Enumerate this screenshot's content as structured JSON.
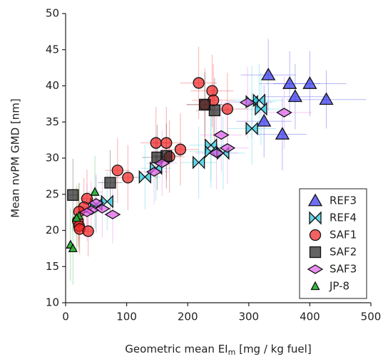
{
  "chart_data": {
    "type": "scatter",
    "xlabel": [
      "Geometric mean EI",
      "m",
      " [mg / kg fuel]"
    ],
    "ylabel": "Mean nvPM GMD [nm]",
    "xlim": [
      0,
      500
    ],
    "ylim": [
      10,
      50
    ],
    "xticks": [
      0,
      100,
      200,
      300,
      400,
      500
    ],
    "yticks": [
      10,
      15,
      20,
      25,
      30,
      35,
      40,
      45,
      50
    ],
    "legend": "lower right",
    "series": [
      {
        "name": "REF3",
        "color": "#3030ee",
        "marker": "triangle",
        "x": [
          332,
          367,
          400,
          376,
          427,
          325,
          355
        ],
        "values": [
          41.5,
          40.3,
          40.3,
          38.5,
          38.1,
          35.1,
          33.3
        ],
        "xerr": [
          45,
          50,
          60,
          55,
          65,
          45,
          40
        ],
        "yerr": [
          5,
          4.5,
          4.5,
          4.5,
          4,
          5,
          5
        ]
      },
      {
        "name": "REF4",
        "color": "#22c8e0",
        "marker": "bowtie",
        "x": [
          305,
          317,
          320,
          305,
          238,
          258,
          238,
          218,
          130,
          148,
          68,
          50
        ],
        "values": [
          37.8,
          38,
          36.8,
          34.1,
          31.8,
          30.7,
          30.9,
          29.4,
          27.4,
          28.6,
          24,
          23.6
        ],
        "xerr": [
          40,
          40,
          40,
          40,
          35,
          35,
          35,
          30,
          25,
          25,
          15,
          12
        ],
        "yerr": [
          5,
          5,
          5,
          5,
          5,
          5,
          5,
          5,
          4.5,
          4.5,
          4,
          4
        ]
      },
      {
        "name": "SAF1",
        "color": "#ee2020",
        "marker": "circle",
        "x": [
          218,
          240,
          242,
          228,
          265,
          148,
          165,
          188,
          170,
          85,
          102,
          35,
          30,
          22,
          20,
          22,
          23,
          37
        ],
        "values": [
          40.4,
          39.3,
          38,
          37.4,
          36.8,
          32.1,
          32.1,
          31.2,
          30.2,
          28.3,
          27.3,
          24.4,
          23.2,
          22.6,
          21.3,
          20.6,
          20.2,
          19.9
        ],
        "xerr": [
          30,
          35,
          35,
          30,
          35,
          25,
          25,
          30,
          25,
          20,
          20,
          12,
          10,
          8,
          8,
          8,
          8,
          10
        ],
        "yerr": [
          5,
          5,
          5,
          5,
          5,
          5,
          5,
          5,
          5,
          4.5,
          4.5,
          4,
          4,
          4,
          3.5,
          3.5,
          3.5,
          3.5
        ]
      },
      {
        "name": "SAF2",
        "color": "#222222",
        "marker": "square",
        "x": [
          12,
          73,
          150,
          165,
          228,
          244
        ],
        "values": [
          24.9,
          26.6,
          30.1,
          30.3,
          37.4,
          36.6
        ],
        "xerr": [
          10,
          20,
          25,
          25,
          30,
          30
        ],
        "yerr": [
          5,
          4.5,
          4.5,
          4.5,
          4.5,
          4.5
        ]
      },
      {
        "name": "SAF3",
        "color": "#e060e8",
        "marker": "diamond",
        "x": [
          298,
          358,
          255,
          265,
          247,
          158,
          145,
          77,
          60,
          42,
          35,
          50
        ],
        "values": [
          37.7,
          36.3,
          33.2,
          31.4,
          30.7,
          29.3,
          28.1,
          22.2,
          23,
          22.8,
          22.5,
          23.8
        ],
        "xerr": [
          40,
          45,
          35,
          35,
          35,
          25,
          25,
          15,
          15,
          12,
          10,
          12
        ],
        "yerr": [
          5,
          5,
          5,
          5,
          5,
          4.5,
          4.5,
          4,
          4,
          4,
          4,
          4
        ]
      },
      {
        "name": "JP-8",
        "color": "#20b030",
        "marker": "tri-small",
        "x": [
          8,
          12,
          48,
          22,
          18
        ],
        "values": [
          18,
          17.5,
          25.3,
          22,
          21.7
        ],
        "xerr": [
          6,
          6,
          12,
          8,
          8
        ],
        "yerr": [
          5,
          5,
          5,
          4.5,
          4.5
        ]
      }
    ]
  }
}
